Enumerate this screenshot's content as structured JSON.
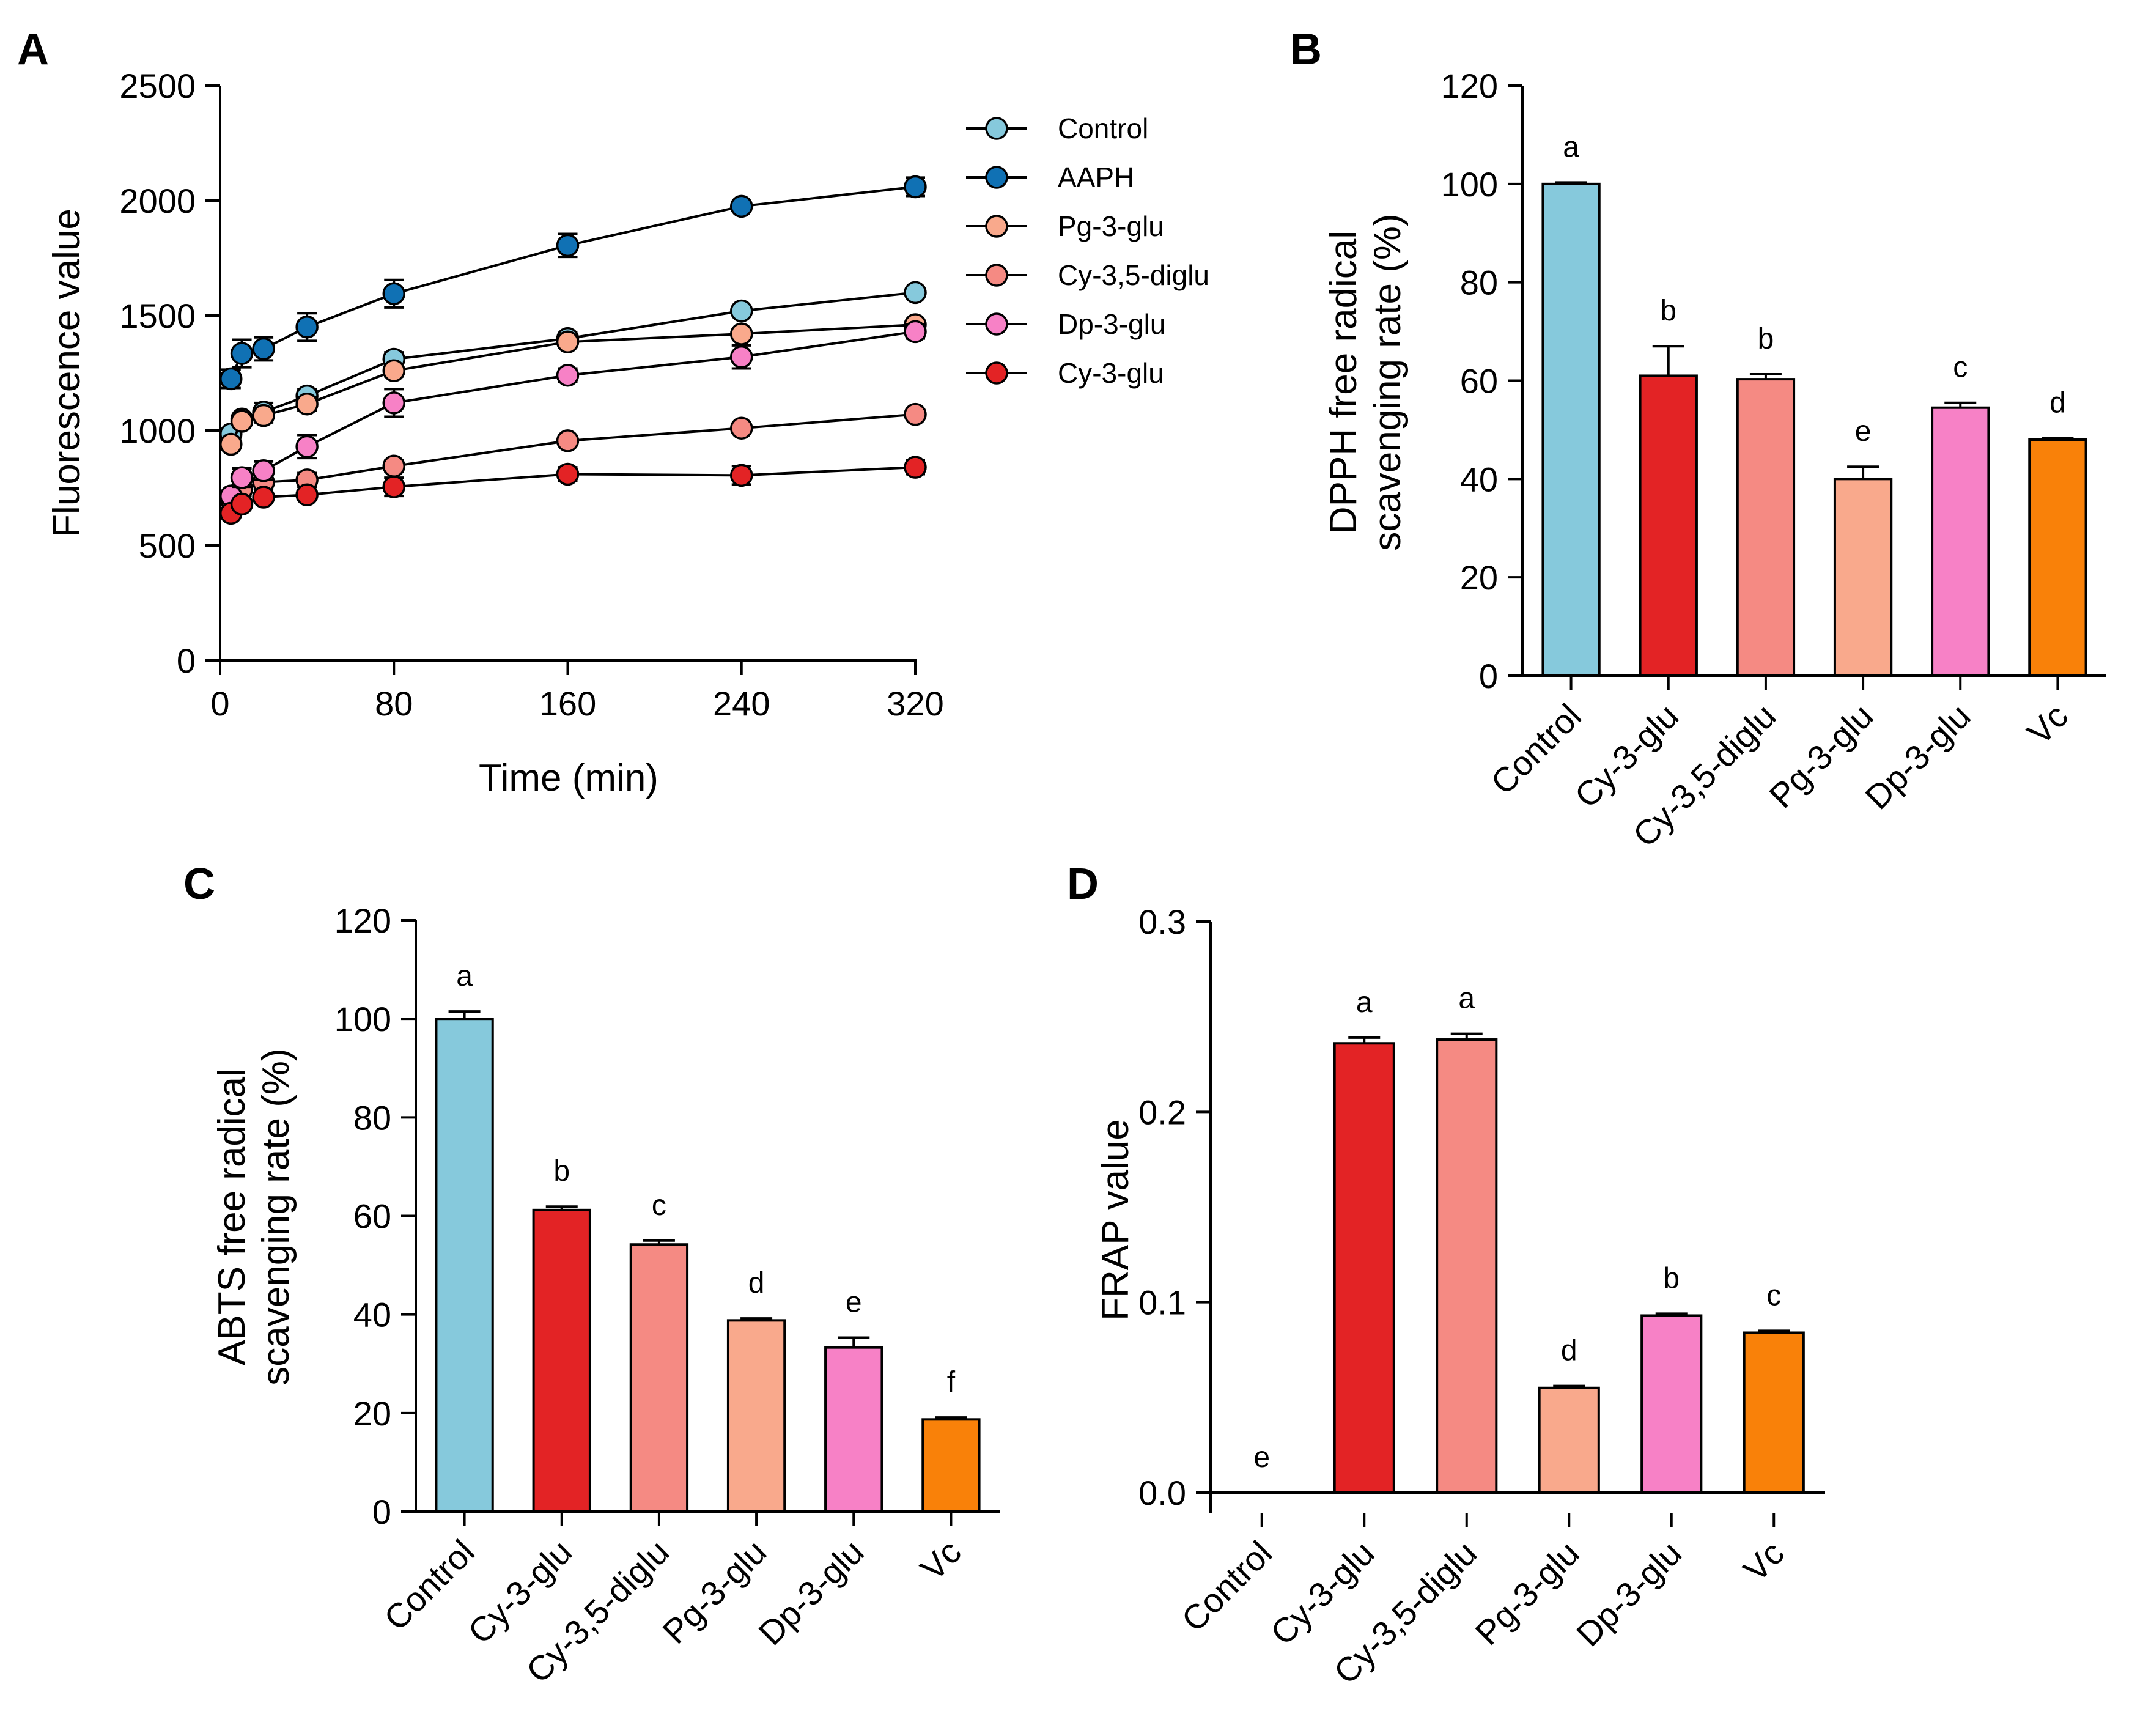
{
  "colors": {
    "control": "#86C9DC",
    "aaph": "#1071B4",
    "pg3glu": "#F9A98C",
    "cy35diglu": "#F58A83",
    "dp3glu": "#F781C6",
    "cy3glu": "#E32325",
    "vc": "#F98109"
  },
  "chart_data": [
    {
      "panel": "A",
      "type": "line",
      "xlabel": "Time (min)",
      "ylabel": "Fluorescence value",
      "x_ticks": [
        0,
        80,
        160,
        240,
        320
      ],
      "y_ticks": [
        0,
        500,
        1000,
        1500,
        2000,
        2500
      ],
      "xlim": [
        0,
        320
      ],
      "ylim": [
        0,
        2500
      ],
      "x": [
        5,
        10,
        20,
        40,
        80,
        160,
        240,
        320
      ],
      "legend_position": "right",
      "series": [
        {
          "name": "Control",
          "color_key": "control",
          "values": [
            985,
            1050,
            1080,
            1150,
            1310,
            1400,
            1520,
            1600
          ],
          "errors": [
            20,
            20,
            40,
            30,
            30,
            25,
            20,
            20
          ]
        },
        {
          "name": "AAPH",
          "color_key": "aaph",
          "values": [
            1225,
            1335,
            1355,
            1450,
            1595,
            1805,
            1975,
            2060
          ],
          "errors": [
            40,
            60,
            50,
            60,
            60,
            50,
            20,
            40
          ]
        },
        {
          "name": "Pg-3-glu",
          "color_key": "pg3glu",
          "values": [
            940,
            1040,
            1065,
            1115,
            1260,
            1385,
            1420,
            1460
          ],
          "errors": [
            20,
            20,
            30,
            30,
            25,
            20,
            20,
            20
          ]
        },
        {
          "name": "Cy-3,5-diglu",
          "color_key": "cy35diglu",
          "values": [
            700,
            745,
            775,
            785,
            845,
            955,
            1010,
            1070
          ],
          "errors": [
            20,
            30,
            30,
            30,
            25,
            20,
            20,
            20
          ]
        },
        {
          "name": "Dp-3-glu",
          "color_key": "dp3glu",
          "values": [
            715,
            795,
            825,
            930,
            1120,
            1240,
            1320,
            1430
          ],
          "errors": [
            20,
            40,
            40,
            50,
            60,
            30,
            50,
            30
          ]
        },
        {
          "name": "Cy-3-glu",
          "color_key": "cy3glu",
          "values": [
            640,
            680,
            710,
            720,
            755,
            810,
            805,
            840
          ],
          "errors": [
            20,
            20,
            20,
            20,
            40,
            30,
            40,
            30
          ]
        }
      ]
    },
    {
      "panel": "B",
      "type": "bar",
      "ylabel_line1": "DPPH free radical",
      "ylabel_line2": "scavenging rate (%)",
      "y_ticks": [
        0,
        20,
        40,
        60,
        80,
        100,
        120
      ],
      "ylim": [
        0,
        120
      ],
      "categories": [
        "Control",
        "Cy-3-glu",
        "Cy-3,5-diglu",
        "Pg-3-glu",
        "Dp-3-glu",
        "Vc"
      ],
      "color_keys": [
        "control",
        "cy3glu",
        "cy35diglu",
        "pg3glu",
        "dp3glu",
        "vc"
      ],
      "values": [
        100,
        61,
        60.3,
        40,
        54.5,
        48
      ],
      "errors": [
        0.3,
        6,
        1,
        2.5,
        1,
        0.3
      ],
      "sig": [
        "a",
        "b",
        "b",
        "e",
        "c",
        "d"
      ]
    },
    {
      "panel": "C",
      "type": "bar",
      "ylabel_line1": "ABTS free radical",
      "ylabel_line2": "scavenging rate (%)",
      "y_ticks": [
        0,
        20,
        40,
        60,
        80,
        100,
        120
      ],
      "ylim": [
        0,
        120
      ],
      "categories": [
        "Control",
        "Cy-3-glu",
        "Cy-3,5-diglu",
        "Pg-3-glu",
        "Dp-3-glu",
        "Vc"
      ],
      "color_keys": [
        "control",
        "cy3glu",
        "cy35diglu",
        "pg3glu",
        "dp3glu",
        "vc"
      ],
      "values": [
        100,
        61.2,
        54.2,
        38.8,
        33.3,
        18.7
      ],
      "errors": [
        1.5,
        0.7,
        0.8,
        0.4,
        2,
        0.4
      ],
      "sig": [
        "a",
        "b",
        "c",
        "d",
        "e",
        "f"
      ]
    },
    {
      "panel": "D",
      "type": "bar",
      "ylabel": "FRAP value",
      "y_ticks": [
        "0.0",
        "0.1",
        "0.2",
        "0.3"
      ],
      "ylim": [
        0,
        0.3
      ],
      "categories": [
        "Control",
        "Cy-3-glu",
        "Cy-3,5-diglu",
        "Pg-3-glu",
        "Dp-3-glu",
        "Vc"
      ],
      "color_keys": [
        "control",
        "cy3glu",
        "cy35diglu",
        "pg3glu",
        "dp3glu",
        "vc"
      ],
      "values": [
        0,
        0.236,
        0.238,
        0.055,
        0.093,
        0.084
      ],
      "errors": [
        0,
        0.003,
        0.003,
        0.001,
        0.001,
        0.001
      ],
      "sig": [
        "e",
        "a",
        "a",
        "d",
        "b",
        "c"
      ]
    }
  ]
}
